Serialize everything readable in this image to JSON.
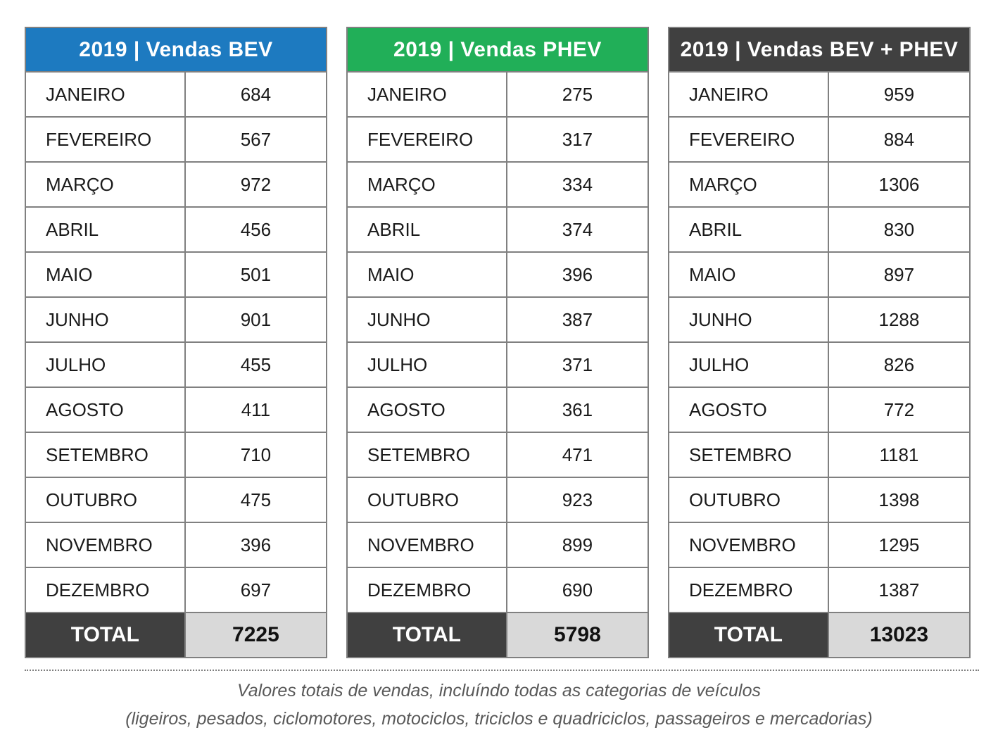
{
  "colors": {
    "bev_header_bg": "#1d7ac0",
    "phev_header_bg": "#21af58",
    "combined_header_bg": "#404040",
    "total_label_bg": "#404040",
    "total_value_bg": "#d9d9d9",
    "table_border": "#808080",
    "footnote_text": "#595959"
  },
  "tables": [
    {
      "title": "2019 | Vendas BEV",
      "header_bg": "#1d7ac0",
      "rows": [
        {
          "month": "JANEIRO",
          "value": "684"
        },
        {
          "month": "FEVEREIRO",
          "value": "567"
        },
        {
          "month": "MARÇO",
          "value": "972"
        },
        {
          "month": "ABRIL",
          "value": "456"
        },
        {
          "month": "MAIO",
          "value": "501"
        },
        {
          "month": "JUNHO",
          "value": "901"
        },
        {
          "month": "JULHO",
          "value": "455"
        },
        {
          "month": "AGOSTO",
          "value": "411"
        },
        {
          "month": "SETEMBRO",
          "value": "710"
        },
        {
          "month": "OUTUBRO",
          "value": "475"
        },
        {
          "month": "NOVEMBRO",
          "value": "396"
        },
        {
          "month": "DEZEMBRO",
          "value": "697"
        }
      ],
      "total_label": "TOTAL",
      "total_value": "7225"
    },
    {
      "title": "2019 | Vendas PHEV",
      "header_bg": "#21af58",
      "rows": [
        {
          "month": "JANEIRO",
          "value": "275"
        },
        {
          "month": "FEVEREIRO",
          "value": "317"
        },
        {
          "month": "MARÇO",
          "value": "334"
        },
        {
          "month": "ABRIL",
          "value": "374"
        },
        {
          "month": "MAIO",
          "value": "396"
        },
        {
          "month": "JUNHO",
          "value": "387"
        },
        {
          "month": "JULHO",
          "value": "371"
        },
        {
          "month": "AGOSTO",
          "value": "361"
        },
        {
          "month": "SETEMBRO",
          "value": "471"
        },
        {
          "month": "OUTUBRO",
          "value": "923"
        },
        {
          "month": "NOVEMBRO",
          "value": "899"
        },
        {
          "month": "DEZEMBRO",
          "value": "690"
        }
      ],
      "total_label": "TOTAL",
      "total_value": "5798"
    },
    {
      "title": "2019 | Vendas BEV + PHEV",
      "header_bg": "#404040",
      "rows": [
        {
          "month": "JANEIRO",
          "value": "959"
        },
        {
          "month": "FEVEREIRO",
          "value": "884"
        },
        {
          "month": "MARÇO",
          "value": "1306"
        },
        {
          "month": "ABRIL",
          "value": "830"
        },
        {
          "month": "MAIO",
          "value": "897"
        },
        {
          "month": "JUNHO",
          "value": "1288"
        },
        {
          "month": "JULHO",
          "value": "826"
        },
        {
          "month": "AGOSTO",
          "value": "772"
        },
        {
          "month": "SETEMBRO",
          "value": "1181"
        },
        {
          "month": "OUTUBRO",
          "value": "1398"
        },
        {
          "month": "NOVEMBRO",
          "value": "1295"
        },
        {
          "month": "DEZEMBRO",
          "value": "1387"
        }
      ],
      "total_label": "TOTAL",
      "total_value": "13023"
    }
  ],
  "footer": {
    "line1": "Valores totais de vendas, incluíndo todas as categorias de veículos",
    "line2": "(ligeiros, pesados, ciclomotores, motociclos, triciclos e quadriciclos, passageiros e mercadorias)"
  },
  "chart_data": {
    "type": "table",
    "categories": [
      "JANEIRO",
      "FEVEREIRO",
      "MARÇO",
      "ABRIL",
      "MAIO",
      "JUNHO",
      "JULHO",
      "AGOSTO",
      "SETEMBRO",
      "OUTUBRO",
      "NOVEMBRO",
      "DEZEMBRO"
    ],
    "series": [
      {
        "name": "2019 | Vendas BEV",
        "values": [
          684,
          567,
          972,
          456,
          501,
          901,
          455,
          411,
          710,
          475,
          396,
          697
        ],
        "total": 7225
      },
      {
        "name": "2019 | Vendas PHEV",
        "values": [
          275,
          317,
          334,
          374,
          396,
          387,
          371,
          361,
          471,
          923,
          899,
          690
        ],
        "total": 5798
      },
      {
        "name": "2019 | Vendas BEV + PHEV",
        "values": [
          959,
          884,
          1306,
          830,
          897,
          1288,
          826,
          772,
          1181,
          1398,
          1295,
          1387
        ],
        "total": 13023
      }
    ],
    "annotations": [
      "Valores totais de vendas, incluíndo todas as categorias de veículos",
      "(ligeiros, pesados, ciclomotores, motociclos, triciclos e quadriciclos, passageiros e mercadorias)"
    ]
  }
}
